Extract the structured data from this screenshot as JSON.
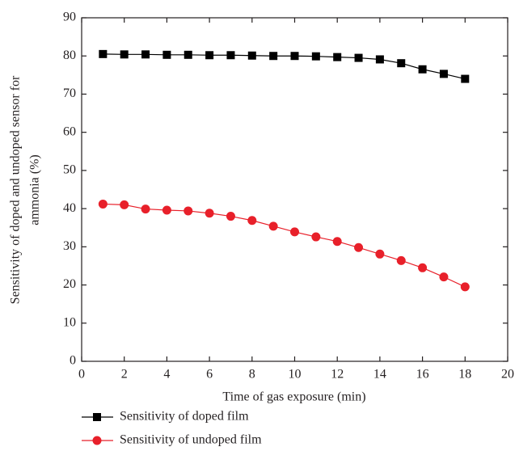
{
  "chart_data": {
    "type": "line",
    "xlabel": "Time of gas exposure (min)",
    "ylabel": [
      "Sensitivity of doped and undoped sensor for",
      "ammonia (%)"
    ],
    "x": [
      1,
      2,
      3,
      4,
      5,
      6,
      7,
      8,
      9,
      10,
      11,
      12,
      13,
      14,
      15,
      16,
      17,
      18
    ],
    "series": [
      {
        "name": "Sensitivity of doped film",
        "color": "#000000",
        "marker": "square",
        "values": [
          80.5,
          80.4,
          80.4,
          80.3,
          80.3,
          80.2,
          80.2,
          80.1,
          80.0,
          80.0,
          79.9,
          79.7,
          79.5,
          79.1,
          78.1,
          76.5,
          75.3,
          74.0
        ]
      },
      {
        "name": "Sensitivity of undoped film",
        "color": "#e8202a",
        "marker": "circle",
        "values": [
          41.2,
          41.0,
          39.9,
          39.6,
          39.4,
          38.8,
          38.0,
          36.9,
          35.4,
          33.9,
          32.6,
          31.4,
          29.8,
          28.1,
          26.4,
          24.5,
          22.1,
          19.5
        ]
      }
    ],
    "xlim": [
      0,
      20
    ],
    "xticks": [
      0,
      2,
      4,
      6,
      8,
      10,
      12,
      14,
      16,
      18,
      20
    ],
    "ylim": [
      0,
      90
    ],
    "yticks": [
      0,
      10,
      20,
      30,
      40,
      50,
      60,
      70,
      80,
      90
    ]
  }
}
